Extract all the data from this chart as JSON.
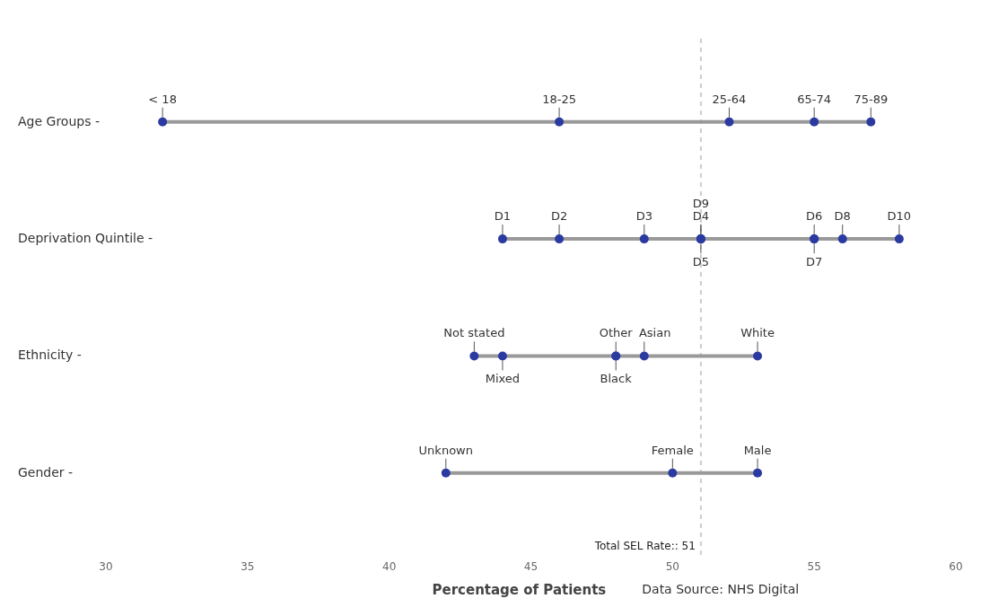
{
  "chart_data": {
    "type": "line",
    "orientation": "horizontal",
    "categories": [
      "Age Groups -",
      "Deprivation Quintile -",
      "Ethnicity -",
      "Gender -"
    ],
    "series": [
      {
        "color": "#999999",
        "colors": [
          "#2b3aa0",
          "#2b3aa0",
          "#2b3aa0",
          "#2b3aa0",
          "#2b3aa0"
        ],
        "x": [
          "Age Groups -",
          "Age Groups -",
          "Age Groups -",
          "Age Groups -",
          "Age Groups -"
        ],
        "values": [
          32,
          46,
          52,
          55,
          57
        ],
        "value_labels": [
          "< 18",
          "18-25",
          "25-64",
          "65-74",
          "75-89"
        ]
      },
      {
        "color": "#999999",
        "colors": [
          "#2b3aa0",
          "#2b3aa0",
          "#2b3aa0",
          "#2b3aa0",
          "#2b3aa0",
          "#2b3aa0",
          "#2b3aa0",
          "#2b3aa0",
          "#2b3aa0",
          "#2b3aa0"
        ],
        "x": [
          "Deprivation Quintile -",
          "Deprivation Quintile -",
          "Deprivation Quintile -",
          "Deprivation Quintile -",
          "Deprivation Quintile -",
          "Deprivation Quintile -",
          "Deprivation Quintile -",
          "Deprivation Quintile -",
          "Deprivation Quintile -",
          "Deprivation Quintile -"
        ],
        "values": [
          44,
          46,
          49,
          51,
          51,
          51,
          55,
          55,
          56,
          58
        ],
        "value_labels": [
          "D1",
          "D2",
          "D3",
          "D4",
          "D5",
          "D9",
          "D6",
          "D7",
          "D8",
          "D10"
        ]
      },
      {
        "color": "#999999",
        "colors": [
          "#2b3aa0",
          "#2b3aa0",
          "#2b3aa0",
          "#2b3aa0",
          "#2b3aa0",
          "#2b3aa0"
        ],
        "x": [
          "Ethnicity -",
          "Ethnicity -",
          "Ethnicity -",
          "Ethnicity -",
          "Ethnicity -",
          "Ethnicity -"
        ],
        "values": [
          43,
          44,
          48,
          48,
          49,
          53
        ],
        "value_labels": [
          "Not stated",
          "Mixed",
          "Other",
          "Black",
          "Asian",
          "White"
        ]
      },
      {
        "color": "#999999",
        "colors": [
          "#2b3aa0",
          "#2b3aa0",
          "#2b3aa0"
        ],
        "x": [
          "Gender -",
          "Gender -",
          "Gender -"
        ],
        "values": [
          42,
          50,
          53
        ],
        "value_labels": [
          "Unknown",
          "Female",
          "Male"
        ]
      }
    ],
    "marker": "circle",
    "xlim": [
      30,
      60
    ],
    "xticks": [
      30,
      35,
      40,
      45,
      50,
      55,
      60
    ],
    "xlabel": "Percentage of Patients",
    "ref_lines": [
      {
        "axis": "x",
        "value": 51,
        "label": "Total SEL Rate:: 51",
        "color": "#cccccc",
        "line_style": "dashed"
      }
    ],
    "annotations": [
      "Data Source: NHS Digital"
    ]
  }
}
